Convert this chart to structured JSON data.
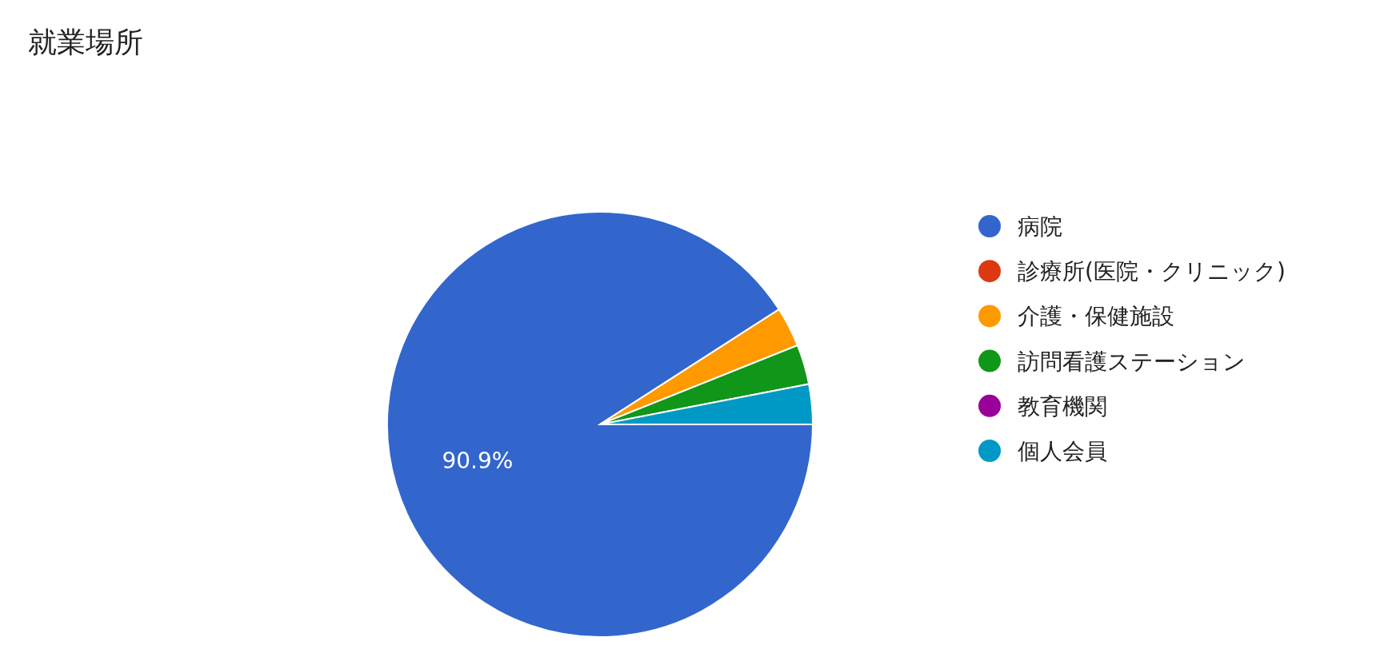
{
  "chart_data": {
    "type": "pie",
    "title": "就業場所",
    "categories": [
      "病院",
      "診療所(医院・クリニック)",
      "介護・保健施設",
      "訪問看護ステーション",
      "教育機関",
      "個人会員"
    ],
    "values": [
      90.9,
      0,
      3.03,
      3.03,
      0,
      3.04
    ],
    "colors": [
      "#3366cc",
      "#dc3912",
      "#ff9900",
      "#109618",
      "#990099",
      "#0099c6"
    ],
    "value_labels": [
      "90.9%",
      null,
      null,
      null,
      null,
      null
    ],
    "legend": "right"
  }
}
